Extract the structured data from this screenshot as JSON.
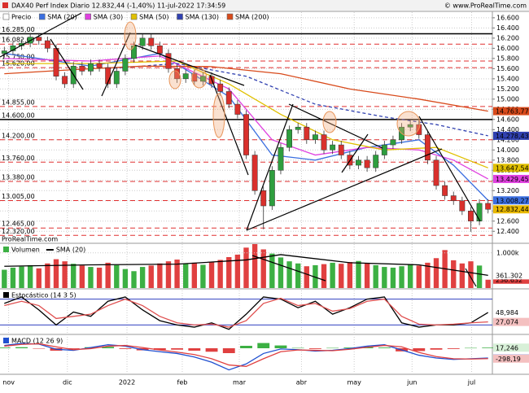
{
  "chart_data": [
    {
      "type": "candlestick",
      "title": "DAX40 Perf Index Diario 12.832,44 (-1,40%) 11-jul-2022 17:34:59",
      "source": "© www.ProRealTime.com",
      "watermark": "ProRealTime.com",
      "name": "Precio",
      "up_color": "#2e9e3e",
      "down_color": "#d9302c",
      "open": [
        15900,
        15950,
        16050,
        16100,
        16220,
        16150,
        16000,
        15450,
        15300,
        15650,
        15550,
        15700,
        15620,
        15300,
        15550,
        15800,
        16050,
        16200,
        16050,
        15900,
        15600,
        15400,
        15500,
        15350,
        15450,
        15300,
        15150,
        14900,
        14700,
        13900,
        13200,
        12900,
        13600,
        14050,
        14400,
        14450,
        14200,
        14300,
        14000,
        14100,
        13900,
        13700,
        13800,
        13650,
        13900,
        14100,
        14200,
        14450,
        14500,
        14300,
        13800,
        13300,
        13100,
        13000,
        12800,
        12600,
        12950
      ],
      "high": [
        16030,
        16130,
        16180,
        16300,
        16300,
        16230,
        16080,
        15530,
        15730,
        15730,
        15780,
        15780,
        15700,
        15630,
        15880,
        16130,
        16280,
        16280,
        16130,
        15980,
        15680,
        15580,
        15580,
        15530,
        15530,
        15380,
        15230,
        14980,
        14780,
        13980,
        13280,
        13680,
        14130,
        14480,
        14530,
        14530,
        14380,
        14380,
        14180,
        14180,
        13980,
        13880,
        13880,
        13980,
        14180,
        14280,
        14530,
        14580,
        14580,
        14380,
        13880,
        13380,
        13180,
        13080,
        12880,
        13030,
        13030
      ],
      "low": [
        15820,
        15870,
        15970,
        16020,
        16070,
        15920,
        15370,
        15220,
        15220,
        15470,
        15470,
        15540,
        15220,
        15220,
        15470,
        15720,
        15970,
        15970,
        15820,
        15520,
        15320,
        15320,
        15270,
        15270,
        15220,
        15070,
        14820,
        14620,
        13820,
        13120,
        12440,
        12820,
        13520,
        13970,
        14320,
        14120,
        14120,
        13920,
        13920,
        13820,
        13620,
        13620,
        13570,
        13570,
        13820,
        14020,
        14120,
        14370,
        14220,
        13720,
        13220,
        13020,
        12920,
        12720,
        12390,
        12520,
        12752
      ],
      "close": [
        15950,
        16050,
        16100,
        16220,
        16150,
        16000,
        15450,
        15300,
        15650,
        15550,
        15700,
        15620,
        15300,
        15550,
        15800,
        16050,
        16200,
        16050,
        15900,
        15600,
        15400,
        15500,
        15350,
        15450,
        15300,
        15150,
        14900,
        14700,
        13900,
        13200,
        12900,
        13600,
        14050,
        14400,
        14450,
        14200,
        14300,
        14000,
        14100,
        13900,
        13700,
        13800,
        13650,
        13900,
        14100,
        14200,
        14450,
        14500,
        14300,
        13800,
        13300,
        13100,
        13000,
        12800,
        12600,
        12950,
        12832.44
      ],
      "last_label": "12.832,44",
      "last_color": "#e8b800",
      "xlim": [
        -0.5,
        56.5
      ],
      "xticks": [
        {
          "value": 0.5,
          "label": "nov"
        },
        {
          "value": 7.3,
          "label": "dic"
        },
        {
          "value": 14.2,
          "label": "2022"
        },
        {
          "value": 20.6,
          "label": "feb"
        },
        {
          "value": 27.2,
          "label": "mar"
        },
        {
          "value": 34.4,
          "label": "abr"
        },
        {
          "value": 40.5,
          "label": "may"
        },
        {
          "value": 47.2,
          "label": "jun"
        },
        {
          "value": 54.1,
          "label": "jul"
        }
      ],
      "ylim": [
        12180,
        16710
      ],
      "yticks": [
        {
          "value": 16600,
          "label": "16.600"
        },
        {
          "value": 16400,
          "label": "16.400"
        },
        {
          "value": 16200,
          "label": "16.200"
        },
        {
          "value": 16000,
          "label": "16.000"
        },
        {
          "value": 15800,
          "label": "15.800"
        },
        {
          "value": 15600,
          "label": "15.600"
        },
        {
          "value": 15400,
          "label": "15.400"
        },
        {
          "value": 15200,
          "label": "15.200"
        },
        {
          "value": 15000,
          "label": "15.000"
        },
        {
          "value": 14800,
          "label": "14.800"
        },
        {
          "value": 14600,
          "label": "14.600"
        },
        {
          "value": 14400,
          "label": "14.400"
        },
        {
          "value": 14200,
          "label": "14.200"
        },
        {
          "value": 14000,
          "label": "14.000"
        },
        {
          "value": 13800,
          "label": "13.800"
        },
        {
          "value": 13600,
          "label": "13.600"
        },
        {
          "value": 13400,
          "label": "13.400"
        },
        {
          "value": 13200,
          "label": "13.200"
        },
        {
          "value": 13000,
          "label": "13.000"
        },
        {
          "value": 12800,
          "label": "12.800"
        },
        {
          "value": 12600,
          "label": "12.600"
        },
        {
          "value": 12400,
          "label": "12.400"
        }
      ],
      "grid": true,
      "levels": [
        {
          "value": 16285,
          "label": "16.285,00",
          "color": "#000000",
          "style": "solid",
          "label_color": "#000000"
        },
        {
          "value": 16082,
          "label": "16.082,00",
          "color": "#e03030",
          "style": "dashed",
          "label_color": "#000000"
        },
        {
          "value": 15750,
          "label": "15.750,00",
          "color": "#e03030",
          "style": "dashed",
          "label_color": "#000000"
        },
        {
          "value": 15620,
          "label": "15.620,00",
          "color": "#e03030",
          "style": "dashed",
          "label_color": "#000000"
        },
        {
          "value": 14855,
          "label": "14.855,00",
          "color": "#e03030",
          "style": "dashed",
          "label_color": "#000000"
        },
        {
          "value": 14600,
          "label": "14.600,00",
          "color": "#000000",
          "style": "solid",
          "label_color": "#000000"
        },
        {
          "value": 14200,
          "label": "14.200,00",
          "color": "#e03030",
          "style": "dashed",
          "label_color": "#000000"
        },
        {
          "value": 13760,
          "label": "13.760,00",
          "color": "#e03030",
          "style": "dashed",
          "label_color": "#000000"
        },
        {
          "value": 13380,
          "label": "13.380,00",
          "color": "#e03030",
          "style": "dashed",
          "label_color": "#000000"
        },
        {
          "value": 13005,
          "label": "13.005,00",
          "color": "#e03030",
          "style": "dashed",
          "label_color": "#e03030"
        },
        {
          "value": 12465,
          "label": "12.465,00",
          "color": "#e03030",
          "style": "dashed",
          "label_color": "#e03030"
        },
        {
          "value": 12320,
          "label": "12.320,00",
          "color": "#e03030",
          "style": "dashed",
          "label_color": "#e03030"
        }
      ],
      "series": [
        {
          "name": "SMA (20)",
          "color": "#3b6fe0",
          "dash": false,
          "x": [
            0,
            10,
            18,
            26,
            31,
            36,
            42,
            48,
            52,
            56
          ],
          "values": [
            15900,
            15650,
            15900,
            15050,
            13900,
            13800,
            14050,
            14200,
            13700,
            13008.27
          ],
          "end_label": "13.008,27"
        },
        {
          "name": "SMA (30)",
          "color": "#e040e0",
          "dash": false,
          "x": [
            0,
            10,
            18,
            26,
            31,
            36,
            42,
            48,
            52,
            56
          ],
          "values": [
            15800,
            15750,
            15850,
            15200,
            14200,
            13900,
            14050,
            14000,
            13800,
            13429.45
          ],
          "end_label": "13.429,45"
        },
        {
          "name": "SMA (50)",
          "color": "#e0c000",
          "dash": false,
          "x": [
            0,
            10,
            20,
            26,
            32,
            38,
            44,
            50,
            56
          ],
          "values": [
            15700,
            15700,
            15750,
            15300,
            14700,
            14200,
            14000,
            14050,
            13647.54
          ],
          "end_label": "13.647,54"
        },
        {
          "name": "SMA (130)",
          "color": "#3040b0",
          "dash": true,
          "x": [
            12,
            20,
            28,
            36,
            44,
            50,
            56
          ],
          "values": [
            15600,
            15700,
            15450,
            14900,
            14650,
            14500,
            14278.43
          ],
          "end_label": "14.278,43"
        },
        {
          "name": "SMA (200)",
          "color": "#d84a1b",
          "dash": false,
          "x": [
            0,
            8,
            16,
            24,
            32,
            40,
            48,
            56
          ],
          "values": [
            15500,
            15580,
            15650,
            15640,
            15500,
            15200,
            15000,
            14763.77
          ],
          "end_label": "14.763,77"
        }
      ]
    },
    {
      "type": "bar",
      "title": "Volumen",
      "up_color": "#3cb043",
      "down_color": "#e04040",
      "values": [
        520000,
        580000,
        610000,
        650000,
        560000,
        700000,
        820000,
        760000,
        690000,
        640000,
        600000,
        580000,
        720000,
        650000,
        540000,
        480000,
        600000,
        640000,
        700000,
        760000,
        810000,
        690000,
        720000,
        660000,
        740000,
        800000,
        880000,
        950000,
        1150000,
        1250000,
        1100000,
        980000,
        870000,
        760000,
        700000,
        620000,
        650000,
        680000,
        720000,
        690000,
        740000,
        770000,
        700000,
        650000,
        600000,
        580000,
        620000,
        680000,
        640000,
        720000,
        850000,
        1080000,
        790000,
        700000,
        760000,
        640000,
        236632
      ],
      "end_label": "236.632",
      "ylim": [
        0,
        1250000
      ],
      "yticks": [
        {
          "value": 1000000,
          "label": "1.000k"
        }
      ],
      "series": [
        {
          "name": "SMA (20)",
          "color": "#000000",
          "x": [
            0,
            10,
            20,
            28,
            32,
            40,
            48,
            56
          ],
          "values": [
            620000,
            660000,
            680000,
            800000,
            950000,
            720000,
            660000,
            361302
          ],
          "end_label": "361.302"
        }
      ]
    },
    {
      "type": "line",
      "title": "Estocástico (14 3 5)",
      "ylim": [
        0,
        100
      ],
      "levels": [
        80,
        20
      ],
      "level_color": "#3040c0",
      "series": [
        {
          "color": "#000000",
          "x": [
            0,
            2,
            4,
            6,
            8,
            10,
            12,
            14,
            16,
            18,
            20,
            22,
            24,
            26,
            28,
            30,
            32,
            34,
            36,
            38,
            40,
            42,
            44,
            46,
            48,
            50,
            52,
            54,
            56
          ],
          "values": [
            70,
            85,
            55,
            20,
            50,
            40,
            75,
            85,
            55,
            30,
            20,
            15,
            25,
            10,
            45,
            85,
            80,
            60,
            75,
            45,
            60,
            80,
            85,
            25,
            15,
            20,
            20,
            25,
            48.984
          ],
          "end_label": "48,984"
        },
        {
          "color": "#e05050",
          "x": [
            0,
            2,
            4,
            6,
            8,
            10,
            12,
            14,
            16,
            18,
            20,
            22,
            24,
            26,
            28,
            30,
            32,
            34,
            36,
            38,
            40,
            42,
            44,
            46,
            48,
            50,
            52,
            54,
            56
          ],
          "values": [
            65,
            75,
            65,
            35,
            40,
            45,
            65,
            80,
            65,
            40,
            25,
            20,
            22,
            15,
            30,
            70,
            82,
            65,
            70,
            52,
            58,
            75,
            80,
            40,
            22,
            20,
            22,
            25,
            27.074
          ],
          "end_label": "27,074"
        }
      ]
    },
    {
      "type": "macd",
      "title": "MACD (12 26 9)",
      "ylim": [
        -700,
        350
      ],
      "histogram": {
        "up_color": "#3cb043",
        "down_color": "#e04040",
        "x": [
          0,
          2,
          4,
          6,
          8,
          10,
          12,
          14,
          16,
          18,
          20,
          22,
          24,
          26,
          28,
          30,
          32,
          34,
          36,
          38,
          40,
          42,
          44,
          46,
          48,
          50,
          52,
          54,
          56
        ],
        "values": [
          20,
          30,
          -10,
          -70,
          -20,
          30,
          40,
          -20,
          -60,
          -50,
          -40,
          -70,
          -100,
          -140,
          70,
          150,
          80,
          10,
          -20,
          10,
          20,
          30,
          20,
          -90,
          -80,
          -40,
          -20,
          10,
          17.246
        ],
        "end_label": "17,246"
      },
      "series": [
        {
          "color": "#2050d0",
          "x": [
            0,
            2,
            4,
            6,
            8,
            10,
            12,
            14,
            16,
            18,
            20,
            22,
            24,
            26,
            28,
            30,
            32,
            34,
            36,
            38,
            40,
            42,
            44,
            46,
            48,
            50,
            52,
            54,
            56
          ],
          "values": [
            80,
            140,
            120,
            -30,
            -60,
            20,
            100,
            60,
            -40,
            -100,
            -150,
            -250,
            -400,
            -620,
            -450,
            -150,
            -20,
            -40,
            -80,
            -60,
            -10,
            60,
            100,
            -50,
            -200,
            -280,
            -320,
            -300,
            -280.95
          ],
          "end_label": "-280,95"
        },
        {
          "color": "#e04040",
          "x": [
            0,
            2,
            4,
            6,
            8,
            10,
            12,
            14,
            16,
            18,
            20,
            22,
            24,
            26,
            28,
            30,
            32,
            34,
            36,
            38,
            40,
            42,
            44,
            46,
            48,
            50,
            52,
            54,
            56
          ],
          "values": [
            60,
            110,
            130,
            40,
            -40,
            -10,
            60,
            80,
            20,
            -50,
            -110,
            -180,
            -300,
            -480,
            -520,
            -300,
            -100,
            -50,
            -60,
            -70,
            -30,
            30,
            80,
            40,
            -120,
            -240,
            -300,
            -310,
            -298.19
          ],
          "end_label": "-298,19"
        }
      ]
    }
  ]
}
